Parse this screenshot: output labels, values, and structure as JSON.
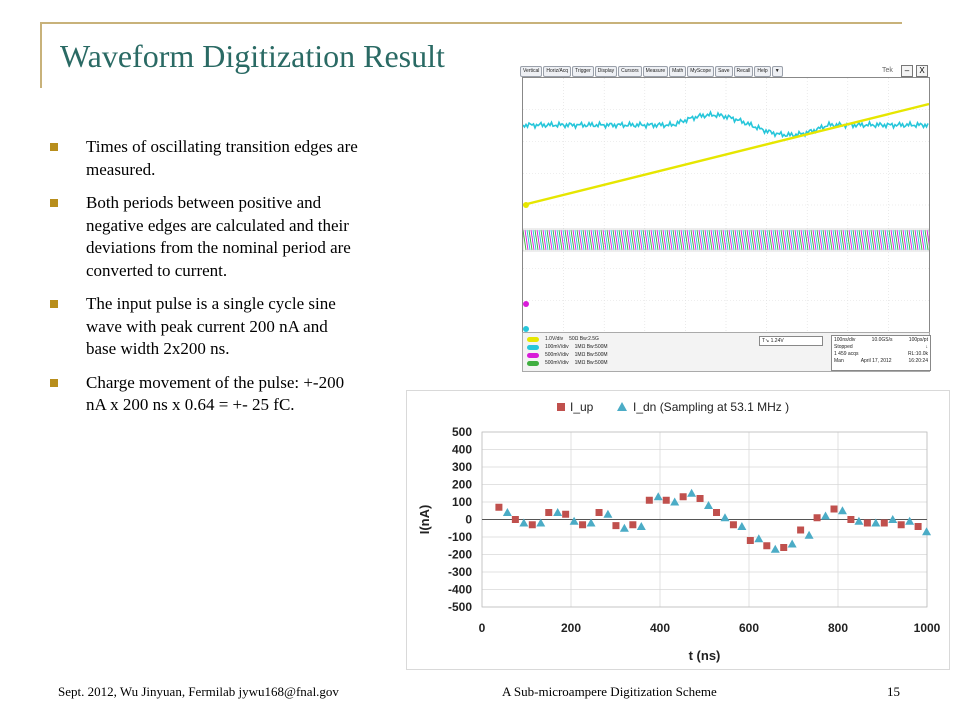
{
  "slide": {
    "title": "Waveform Digitization Result",
    "bullets": [
      "Times of oscillating transition edges are measured.",
      "Both periods between positive and negative edges are calculated and their deviations from the nominal period are converted to current.",
      "The input pulse is a single cycle sine wave with peak current 200 nA and base width 2x200 ns.",
      "Charge movement of the pulse: +-200 nA x 200 ns x 0.64 = +- 25 fC."
    ],
    "footer": {
      "left": "Sept. 2012, Wu Jinyuan, Fermilab jywu168@fnal.gov",
      "center": "A Sub-microampere Digitization Scheme",
      "page": "15"
    },
    "accent_color": "#2a6a64",
    "frame_color": "#c8b27a",
    "bullet_color": "#b88e1c"
  },
  "scope": {
    "menu": [
      "Vertical",
      "Horiz/Acq",
      "Trigger",
      "Display",
      "Cursors",
      "Measure",
      "Math",
      "MyScope",
      "Save",
      "Recall",
      "Help",
      "▼"
    ],
    "brand": "Tek",
    "window_buttons": [
      "–",
      "X"
    ],
    "channels": [
      {
        "label": "1.0V/div",
        "spec": "50Ω  Bw:2.5G",
        "color": "#e6e600"
      },
      {
        "label": "100mV/div",
        "spec": "1MΩ  Bw:500M",
        "color": "#26c6da"
      },
      {
        "label": "500mV/div",
        "spec": "1MΩ  Bw:500M",
        "color": "#d81bd8"
      },
      {
        "label": "500mV/div",
        "spec": "1MΩ  Bw:500M",
        "color": "#3fae3f"
      }
    ],
    "trigger": "1.24V",
    "timebase": {
      "row1": [
        "100ns/div",
        "10.0GS/s",
        "100ps/pt"
      ],
      "row2": [
        "Stopped",
        "",
        ""
      ],
      "row3": [
        "1 459 acqs",
        "",
        "RL:10.0k"
      ],
      "row4": [
        "Man",
        "April 17, 2012",
        "16:20:24"
      ]
    }
  },
  "chart_data": {
    "type": "scatter",
    "title": "",
    "xlabel": "t (ns)",
    "ylabel": "I(nA)",
    "xlim": [
      0,
      1000
    ],
    "ylim": [
      -500,
      500
    ],
    "xticks": [
      0,
      200,
      400,
      600,
      800,
      1000
    ],
    "yticks": [
      500,
      400,
      300,
      200,
      100,
      0,
      -100,
      -200,
      -300,
      -400,
      -500
    ],
    "grid": true,
    "legend": "top-center",
    "series": [
      {
        "name": "I_up",
        "marker": "square",
        "color": "#c0504d",
        "x": [
          38,
          75,
          113,
          150,
          188,
          226,
          263,
          301,
          339,
          376,
          414,
          452,
          490,
          527,
          565,
          603,
          640,
          678,
          716,
          753,
          791,
          829,
          866,
          904,
          942,
          980
        ],
        "y": [
          70,
          0,
          -30,
          40,
          30,
          -30,
          40,
          -35,
          -30,
          110,
          110,
          130,
          120,
          40,
          -30,
          -120,
          -150,
          -160,
          -60,
          10,
          60,
          0,
          -20,
          -20,
          -30,
          -40
        ]
      },
      {
        "name": "I_dn (Sampling at 53.1 MHz )",
        "marker": "triangle",
        "color": "#4bacc6",
        "x": [
          57,
          94,
          132,
          170,
          207,
          245,
          283,
          320,
          358,
          396,
          433,
          471,
          509,
          546,
          584,
          622,
          659,
          697,
          735,
          772,
          810,
          847,
          885,
          923,
          961,
          999
        ],
        "y": [
          40,
          -20,
          -20,
          40,
          -10,
          -20,
          30,
          -50,
          -40,
          130,
          100,
          150,
          80,
          10,
          -40,
          -110,
          -170,
          -140,
          -90,
          20,
          50,
          -10,
          -20,
          0,
          -10,
          -70
        ]
      }
    ]
  }
}
